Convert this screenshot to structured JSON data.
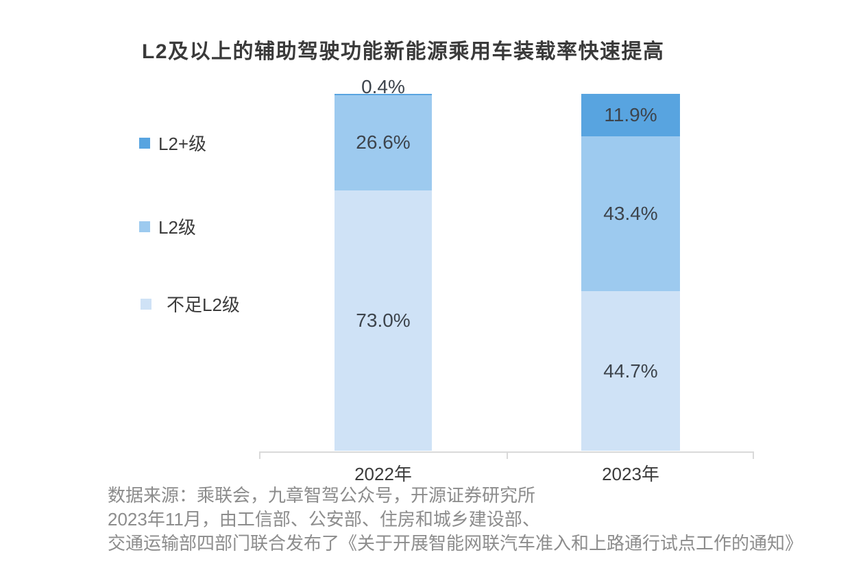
{
  "title": "L2及以上的辅助驾驶功能新能源乘用车装载率快速提高",
  "legend": {
    "items": [
      {
        "label": "L2+级",
        "color": "#58a4e0"
      },
      {
        "label": "L2级",
        "color": "#9dcaef"
      },
      {
        "label": "不足L2级",
        "color": "#cfe2f6"
      }
    ]
  },
  "chart_data": {
    "type": "bar",
    "subtype": "stacked-percentage-column",
    "title": "L2及以上的辅助驾驶功能新能源乘用车装载率快速提高",
    "categories": [
      "2022年",
      "2023年"
    ],
    "series": [
      {
        "name": "L2+级",
        "color": "#58a4e0",
        "values": [
          0.4,
          11.9
        ]
      },
      {
        "name": "L2级",
        "color": "#9dcaef",
        "values": [
          26.6,
          43.4
        ]
      },
      {
        "name": "不足L2级",
        "color": "#cfe2f6",
        "values": [
          73.0,
          44.7
        ]
      }
    ],
    "value_suffix": "%",
    "ylim": [
      0,
      100
    ],
    "grid": false,
    "legend_position": "left",
    "axis_color": "#d9d9d9",
    "label_color": "#3d444c"
  },
  "source": {
    "line1": "数据来源：乘联会，九章智驾公众号，开源证券研究所",
    "line2": "2023年11月，由工信部、公安部、住房和城乡建设部、",
    "line3": "交通运输部四部门联合发布了《关于开展智能网联汽车准入和上路通行试点工作的通知》"
  }
}
